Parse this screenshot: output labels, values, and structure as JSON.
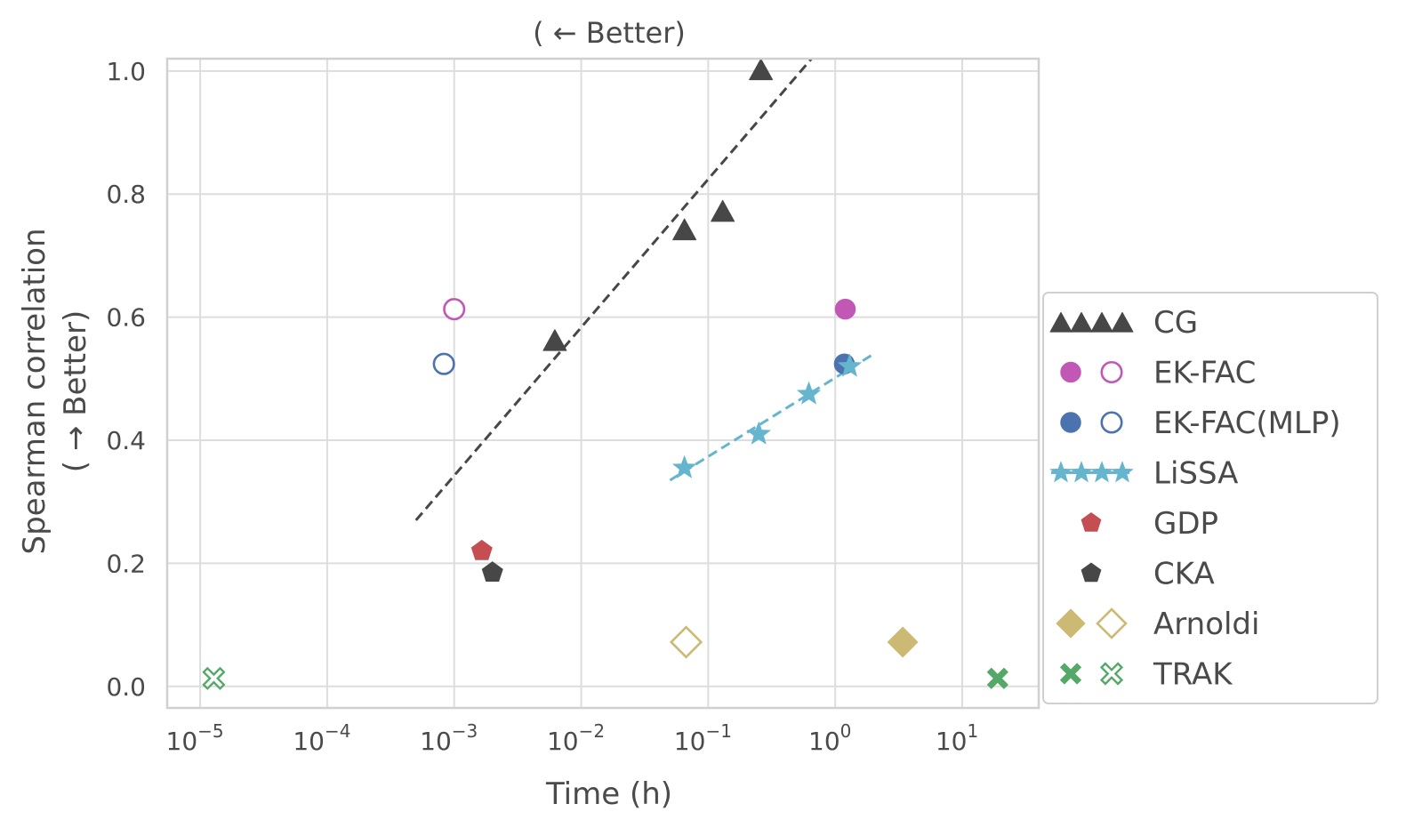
{
  "chart_data": {
    "type": "scatter",
    "title": "( ← Better)",
    "xlabel": "Time (h)",
    "ylabel_line1": "Spearman correlation",
    "ylabel_line2": "( → Better)",
    "x_scale": "log",
    "xlim": [
      5.5e-06,
      40
    ],
    "ylim": [
      -0.035,
      1.02
    ],
    "grid": true,
    "legend_position": "right",
    "x_ticks": [
      {
        "value": 1e-05,
        "base": "10",
        "exp": "−5"
      },
      {
        "value": 0.0001,
        "base": "10",
        "exp": "−4"
      },
      {
        "value": 0.001,
        "base": "10",
        "exp": "−3"
      },
      {
        "value": 0.01,
        "base": "10",
        "exp": "−2"
      },
      {
        "value": 0.1,
        "base": "10",
        "exp": "−1"
      },
      {
        "value": 1,
        "base": "10",
        "exp": "0"
      },
      {
        "value": 10,
        "base": "10",
        "exp": "1"
      }
    ],
    "y_ticks": [
      {
        "value": 0.0,
        "label": "0.0"
      },
      {
        "value": 0.2,
        "label": "0.2"
      },
      {
        "value": 0.4,
        "label": "0.4"
      },
      {
        "value": 0.6,
        "label": "0.6"
      },
      {
        "value": 0.8,
        "label": "0.8"
      },
      {
        "value": 1.0,
        "label": "1.0"
      }
    ],
    "series": [
      {
        "name": "CG",
        "color": "#474747",
        "marker": "triangle",
        "points": [
          {
            "x": 0.0062,
            "y": 0.56,
            "filled": true
          },
          {
            "x": 0.065,
            "y": 0.74,
            "filled": true
          },
          {
            "x": 0.13,
            "y": 0.77,
            "filled": true
          },
          {
            "x": 0.26,
            "y": 1.0,
            "filled": true
          }
        ],
        "fit": {
          "x": [
            0.0005,
            0.65
          ],
          "y": [
            0.27,
            1.02
          ]
        }
      },
      {
        "name": "EK-FAC",
        "color": "#c158b6",
        "marker": "circle",
        "points": [
          {
            "x": 1.2,
            "y": 0.613,
            "filled": true
          },
          {
            "x": 0.001,
            "y": 0.613,
            "filled": false
          }
        ]
      },
      {
        "name": "EK-FAC(MLP)",
        "color": "#4c72b0",
        "marker": "circle",
        "points": [
          {
            "x": 1.18,
            "y": 0.524,
            "filled": true
          },
          {
            "x": 0.00083,
            "y": 0.524,
            "filled": false
          }
        ]
      },
      {
        "name": "LiSSA",
        "color": "#64b5cd",
        "marker": "star",
        "points": [
          {
            "x": 0.065,
            "y": 0.355,
            "filled": true
          },
          {
            "x": 0.25,
            "y": 0.41,
            "filled": true
          },
          {
            "x": 0.62,
            "y": 0.475,
            "filled": true
          },
          {
            "x": 1.3,
            "y": 0.52,
            "filled": true
          }
        ],
        "fit": {
          "x": [
            0.05,
            2.0
          ],
          "y": [
            0.335,
            0.54
          ]
        }
      },
      {
        "name": "GDP",
        "color": "#c44e52",
        "marker": "pentagon",
        "points": [
          {
            "x": 0.00165,
            "y": 0.22,
            "filled": true
          }
        ]
      },
      {
        "name": "CKA",
        "color": "#474747",
        "marker": "pentagon",
        "points": [
          {
            "x": 0.002,
            "y": 0.185,
            "filled": true
          }
        ]
      },
      {
        "name": "Arnoldi",
        "color": "#ccb974",
        "marker": "diamond",
        "points": [
          {
            "x": 3.4,
            "y": 0.072,
            "filled": true
          },
          {
            "x": 0.067,
            "y": 0.072,
            "filled": false
          }
        ]
      },
      {
        "name": "TRAK",
        "color": "#55a868",
        "marker": "x",
        "points": [
          {
            "x": 19,
            "y": 0.013,
            "filled": true
          },
          {
            "x": 1.28e-05,
            "y": 0.013,
            "filled": false
          }
        ]
      }
    ]
  }
}
